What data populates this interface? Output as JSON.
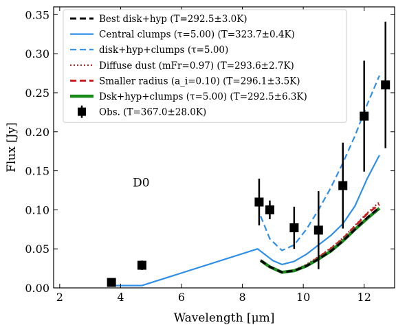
{
  "chart_data": {
    "type": "line",
    "xlabel": "Wavelength [μm]",
    "ylabel": "Flux [Jy]",
    "xlim": [
      1.8,
      13.0
    ],
    "ylim": [
      0.0,
      0.36
    ],
    "xticks": [
      2,
      4,
      6,
      8,
      10,
      12
    ],
    "xtick_labels": [
      "2",
      "4",
      "6",
      "8",
      "10",
      "12"
    ],
    "yticks": [
      0.0,
      0.05,
      0.1,
      0.15,
      0.2,
      0.25,
      0.3,
      0.35
    ],
    "ytick_labels": [
      "0.00",
      "0.05",
      "0.10",
      "0.15",
      "0.20",
      "0.25",
      "0.30",
      "0.35"
    ],
    "grid": false,
    "legend_position": "top-left",
    "annotation": "D0",
    "series": [
      {
        "name": "Best disk+hyp (T=292.5±3.0K)",
        "color": "#000000",
        "style": "dashed",
        "x": [
          8.6,
          8.9,
          9.3,
          9.7,
          10.1,
          10.5,
          10.9,
          11.3,
          11.7,
          12.1,
          12.5
        ],
        "y": [
          0.035,
          0.027,
          0.02,
          0.022,
          0.028,
          0.037,
          0.047,
          0.06,
          0.075,
          0.09,
          0.103
        ]
      },
      {
        "name": "Central clumps (τ=5.00) (T=323.7±0.4K)",
        "color": "#2f8fe8",
        "style": "solid",
        "x": [
          3.6,
          4.7,
          8.5,
          9.0,
          9.3,
          9.7,
          10.1,
          10.5,
          10.9,
          11.3,
          11.7,
          12.1,
          12.5
        ],
        "y": [
          0.003,
          0.003,
          0.05,
          0.035,
          0.03,
          0.034,
          0.043,
          0.055,
          0.067,
          0.082,
          0.105,
          0.14,
          0.17
        ]
      },
      {
        "name": "disk+hyp+clumps (τ=5.00)",
        "color": "#2f8fe8",
        "style": "dashed",
        "x": [
          8.6,
          8.9,
          9.3,
          9.7,
          10.1,
          10.5,
          10.9,
          11.3,
          11.7,
          12.1,
          12.5
        ],
        "y": [
          0.092,
          0.063,
          0.048,
          0.055,
          0.075,
          0.1,
          0.128,
          0.16,
          0.195,
          0.235,
          0.272
        ]
      },
      {
        "name": "Diffuse dust (mFr=0.97) (T=293.6±2.7K)",
        "color": "#a02020",
        "style": "dotted",
        "x": [
          8.6,
          8.9,
          9.3,
          9.7,
          10.1,
          10.5,
          10.9,
          11.3,
          11.7,
          12.1,
          12.5
        ],
        "y": [
          0.036,
          0.028,
          0.021,
          0.023,
          0.03,
          0.04,
          0.051,
          0.064,
          0.08,
          0.096,
          0.11
        ]
      },
      {
        "name": "Smaller radius (a_i=0.10) (T=296.1±3.5K)",
        "color": "#c82020",
        "style": "dashed",
        "x": [
          8.6,
          8.9,
          9.3,
          9.7,
          10.1,
          10.5,
          10.9,
          11.3,
          11.7,
          12.1,
          12.5
        ],
        "y": [
          0.035,
          0.027,
          0.02,
          0.022,
          0.029,
          0.039,
          0.05,
          0.063,
          0.079,
          0.095,
          0.107
        ]
      },
      {
        "name": "Dsk+hyp+clumps (τ=5.00) (T=292.5±6.3K)",
        "color": "#1a8a1a",
        "style": "solid",
        "x": [
          8.6,
          8.9,
          9.3,
          9.7,
          10.1,
          10.5,
          10.9,
          11.3,
          11.7,
          12.1,
          12.5
        ],
        "y": [
          0.035,
          0.027,
          0.02,
          0.022,
          0.028,
          0.037,
          0.047,
          0.06,
          0.075,
          0.089,
          0.102
        ]
      }
    ],
    "observations": {
      "name": "Obs. (T=367.0±28.0K)",
      "color": "#000000",
      "points": [
        {
          "x": 3.7,
          "y": 0.007,
          "err": 0.002
        },
        {
          "x": 4.7,
          "y": 0.029,
          "err": 0.006
        },
        {
          "x": 8.55,
          "y": 0.11,
          "err": 0.03
        },
        {
          "x": 8.9,
          "y": 0.1,
          "err": 0.012
        },
        {
          "x": 9.7,
          "y": 0.077,
          "err": 0.027
        },
        {
          "x": 10.5,
          "y": 0.074,
          "err": 0.05
        },
        {
          "x": 11.3,
          "y": 0.131,
          "err": 0.055
        },
        {
          "x": 12.0,
          "y": 0.22,
          "err": 0.071
        },
        {
          "x": 12.7,
          "y": 0.26,
          "err": 0.081
        }
      ]
    }
  }
}
